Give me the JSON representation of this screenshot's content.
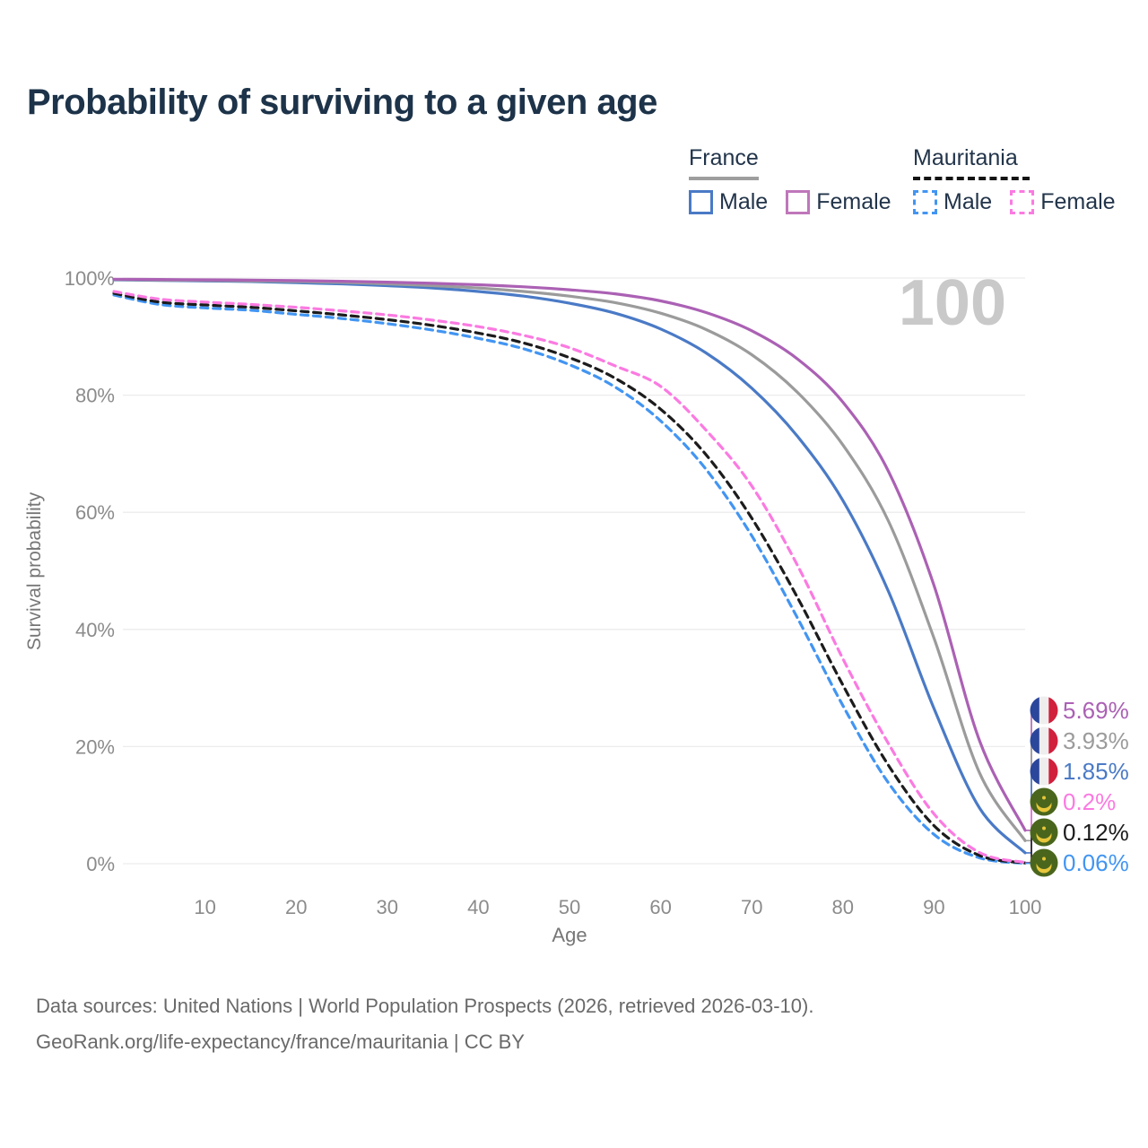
{
  "title": "Probability of surviving to a given age",
  "legend": {
    "groups": [
      {
        "name": "France",
        "line_style": "solid",
        "rule_color": "#9e9e9e",
        "items": [
          {
            "label": "Male",
            "color": "#4a7ac6",
            "dashed": false
          },
          {
            "label": "Female",
            "color": "#bf77ba",
            "dashed": false
          }
        ]
      },
      {
        "name": "Mauritania",
        "line_style": "dashed",
        "rule_color": "#141414",
        "items": [
          {
            "label": "Male",
            "color": "#4295f2",
            "dashed": true
          },
          {
            "label": "Female",
            "color": "#fb7ae1",
            "dashed": true
          }
        ]
      }
    ]
  },
  "watermark": "100",
  "chart_data": {
    "type": "line",
    "title": "Probability of surviving to a given age",
    "xlabel": "Age",
    "ylabel": "Survival probability",
    "xlim": [
      0,
      100
    ],
    "ylim": [
      0,
      100
    ],
    "grid": "horizontal",
    "x_ticks": [
      10,
      20,
      30,
      40,
      50,
      60,
      70,
      80,
      90,
      100
    ],
    "y_ticks": [
      "0%",
      "20%",
      "40%",
      "60%",
      "80%",
      "100%"
    ],
    "x": [
      0,
      5,
      10,
      15,
      20,
      25,
      30,
      35,
      40,
      45,
      50,
      55,
      60,
      65,
      70,
      75,
      80,
      85,
      90,
      95,
      100
    ],
    "series": [
      {
        "name": "France Female",
        "color": "#ab61b4",
        "dashed": false,
        "flag": "france",
        "end_label": "5.69%",
        "values": [
          99.8,
          99.75,
          99.7,
          99.65,
          99.55,
          99.45,
          99.3,
          99.1,
          98.85,
          98.5,
          98.0,
          97.3,
          96.1,
          94.1,
          91.0,
          86.2,
          78.8,
          67.0,
          47.5,
          21.0,
          5.69
        ]
      },
      {
        "name": "France Both sexes",
        "color": "#9b9b9b",
        "dashed": false,
        "flag": "france",
        "end_label": "3.93%",
        "values": [
          99.75,
          99.65,
          99.6,
          99.5,
          99.4,
          99.25,
          99.0,
          98.7,
          98.3,
          97.7,
          96.9,
          95.8,
          94.0,
          91.2,
          86.9,
          80.5,
          71.5,
          58.5,
          38.5,
          15.5,
          3.93
        ]
      },
      {
        "name": "France Male",
        "color": "#4a7ac6",
        "dashed": false,
        "flag": "france",
        "end_label": "1.85%",
        "values": [
          99.7,
          99.6,
          99.5,
          99.4,
          99.2,
          99.0,
          98.7,
          98.3,
          97.7,
          96.9,
          95.7,
          94.0,
          91.3,
          87.2,
          81.2,
          73.0,
          62.0,
          46.5,
          26.5,
          9.5,
          1.85
        ]
      },
      {
        "name": "Mauritania Female",
        "color": "#fb7ae1",
        "dashed": true,
        "flag": "mauritania",
        "end_label": "0.2%",
        "values": [
          97.7,
          96.4,
          95.9,
          95.5,
          95.0,
          94.4,
          93.7,
          92.8,
          91.7,
          90.2,
          88.1,
          85.0,
          81.5,
          74.0,
          64.5,
          51.0,
          35.0,
          20.5,
          8.5,
          1.9,
          0.2
        ]
      },
      {
        "name": "Mauritania Both sexes",
        "color": "#1c1c1c",
        "dashed": true,
        "flag": "mauritania",
        "end_label": "0.12%",
        "values": [
          97.4,
          95.9,
          95.4,
          95.0,
          94.4,
          93.7,
          92.9,
          91.9,
          90.6,
          88.9,
          86.4,
          82.9,
          77.6,
          69.8,
          59.0,
          45.5,
          30.5,
          16.8,
          6.5,
          1.4,
          0.12
        ]
      },
      {
        "name": "Mauritania Male",
        "color": "#4295f2",
        "dashed": true,
        "flag": "mauritania",
        "end_label": "0.06%",
        "values": [
          97.1,
          95.5,
          94.9,
          94.5,
          93.8,
          93.1,
          92.2,
          91.1,
          89.7,
          87.9,
          85.2,
          81.4,
          75.6,
          67.3,
          56.0,
          42.0,
          27.0,
          13.8,
          5.0,
          1.0,
          0.06
        ]
      }
    ],
    "flag_colors": {
      "france_blue": "#2b479c",
      "france_white": "#eeeeee",
      "france_red": "#d0203c",
      "mauritania_green": "#4a661c",
      "mauritania_yellow": "#e7c63a"
    },
    "gridline_color": "#ececec",
    "tick_color": "#8b8b8b",
    "axis_title_color": "#767676",
    "watermark_color": "#c9c9c9"
  },
  "footer": {
    "line1": "Data sources: United Nations | World Population Prospects (2026, retrieved 2026-03-10).",
    "line2": "GeoRank.org/life-expectancy/france/mauritania | CC BY"
  }
}
